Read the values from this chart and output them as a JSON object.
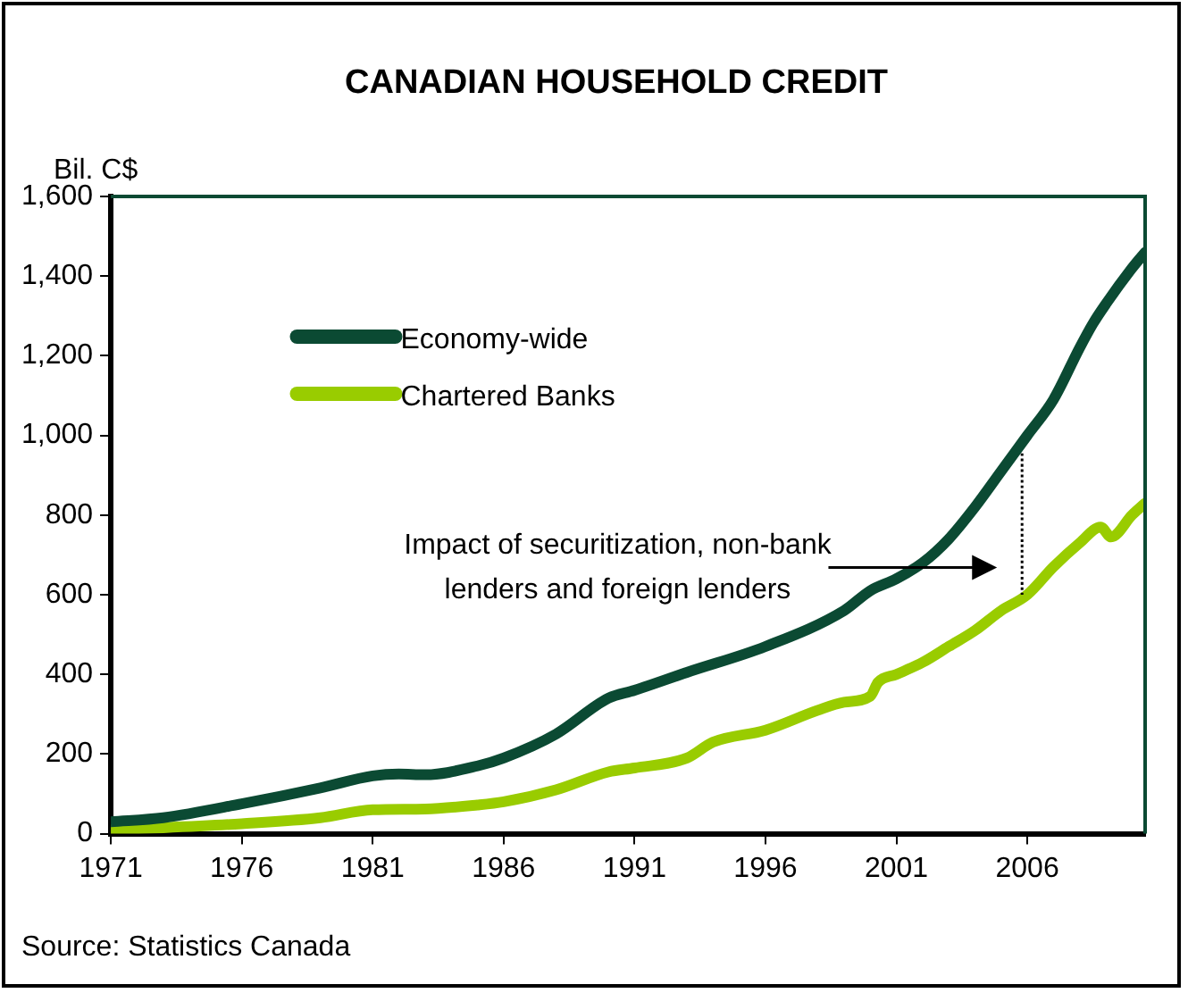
{
  "chart_data": {
    "type": "line",
    "title": "CANADIAN HOUSEHOLD CREDIT",
    "ylabel": "Bil. C$",
    "xlim": [
      1971,
      2010.5
    ],
    "xticks": [
      1971,
      1976,
      1981,
      1986,
      1991,
      1996,
      2001,
      2006
    ],
    "ylim": [
      0,
      1600
    ],
    "yticks": [
      {
        "value": 0,
        "label": "0"
      },
      {
        "value": 200,
        "label": "200"
      },
      {
        "value": 400,
        "label": "400"
      },
      {
        "value": 600,
        "label": "600"
      },
      {
        "value": 800,
        "label": "800"
      },
      {
        "value": 1000,
        "label": "1,000"
      },
      {
        "value": 1200,
        "label": "1,200"
      },
      {
        "value": 1400,
        "label": "1,400"
      },
      {
        "value": 1600,
        "label": "1,600"
      }
    ],
    "grid": false,
    "legend": "top left",
    "marker": "none",
    "line_style": "solid",
    "series": [
      {
        "name": "Economy-wide",
        "color": "#0b4a33",
        "x": [
          1971,
          1973,
          1976,
          1979,
          1981,
          1982,
          1983,
          1985,
          1986,
          1988,
          1990,
          1991,
          1993,
          1996,
          1999,
          2000,
          2001,
          2002,
          2003,
          2004,
          2005,
          2006,
          2007,
          2008,
          2008.5,
          2009,
          2010,
          2010.5
        ],
        "values": [
          30,
          40,
          75,
          115,
          145,
          150,
          148,
          170,
          190,
          250,
          340,
          360,
          405,
          470,
          560,
          610,
          640,
          680,
          740,
          820,
          910,
          1000,
          1090,
          1220,
          1280,
          1330,
          1420,
          1460
        ]
      },
      {
        "name": "Chartered Banks",
        "color": "#99cc00",
        "x": [
          1971,
          1973,
          1976,
          1979,
          1981,
          1983,
          1985,
          1986,
          1988,
          1990,
          1991,
          1993,
          1994,
          1996,
          1998,
          1999,
          2000,
          2000.3,
          2001,
          2002,
          2003,
          2004,
          2005,
          2006,
          2007,
          2008,
          2008.8,
          2009.2,
          2010,
          2010.5
        ],
        "values": [
          10,
          15,
          25,
          40,
          60,
          62,
          72,
          80,
          110,
          155,
          165,
          190,
          230,
          260,
          310,
          330,
          345,
          380,
          400,
          430,
          470,
          510,
          560,
          600,
          670,
          730,
          770,
          745,
          800,
          830
        ]
      },
      {
        "type": "line",
        "color": "#000000",
        "line_style": "dotted",
        "x": [
          2005.8,
          2005.8
        ],
        "values": [
          955,
          600
        ]
      }
    ],
    "annotations": [
      "Impact of securitization, non-bank lenders and foreign lenders",
      "Source: Statistics Canada"
    ]
  }
}
